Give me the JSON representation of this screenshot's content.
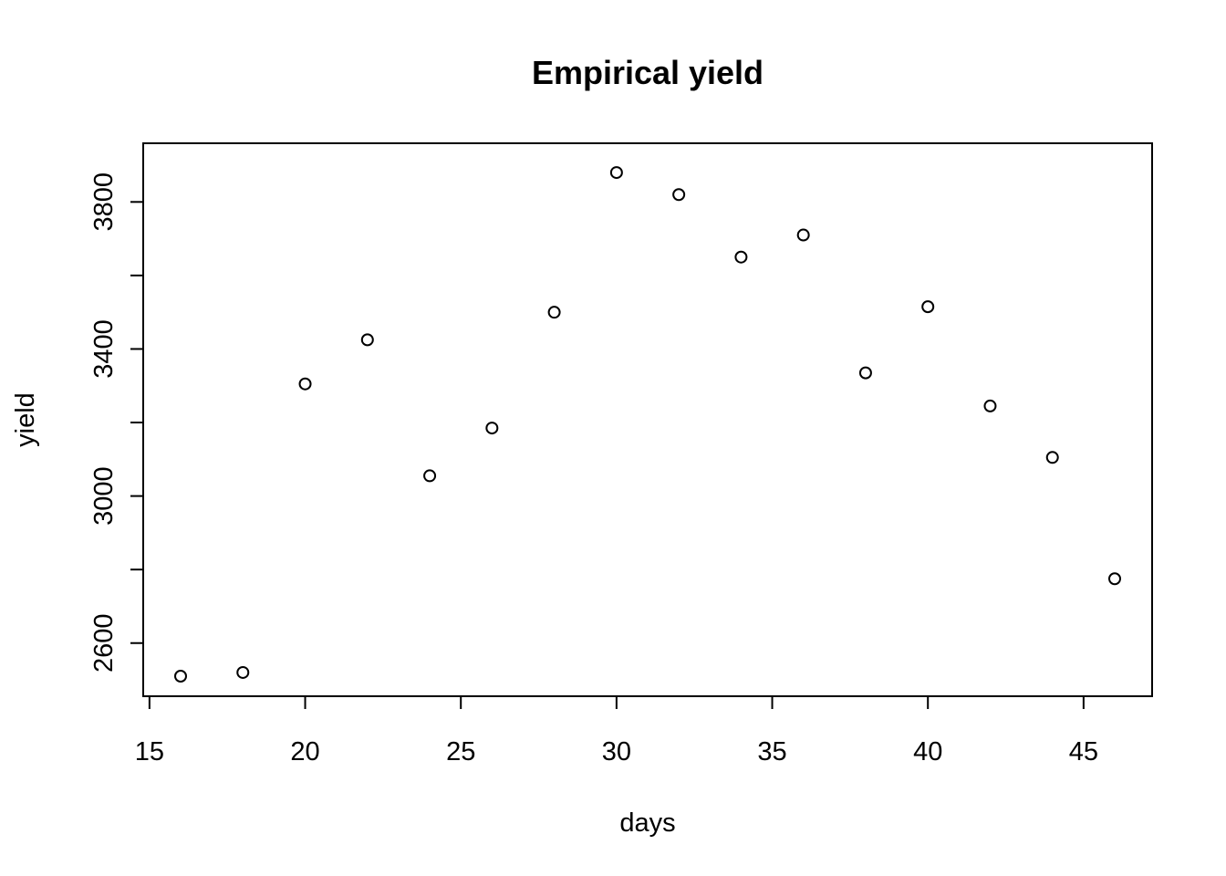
{
  "chart_data": {
    "type": "scatter",
    "title": "Empirical yield",
    "xlabel": "days",
    "ylabel": "yield",
    "xlim": [
      15,
      47
    ],
    "ylim": [
      2510,
      3905
    ],
    "x_ticks": [
      15,
      20,
      25,
      30,
      35,
      40,
      45
    ],
    "y_ticks": [
      2600,
      2800,
      3000,
      3200,
      3400,
      3600,
      3800
    ],
    "y_tick_labels": [
      "2600",
      "",
      "3000",
      "",
      "3400",
      "",
      "3800"
    ],
    "grid": false,
    "legend": "none",
    "marker": "open-circle",
    "color": "#000000",
    "x": [
      16,
      18,
      20,
      22,
      24,
      26,
      28,
      30,
      32,
      34,
      36,
      38,
      40,
      42,
      44,
      46
    ],
    "y": [
      2510,
      2520,
      3305,
      3425,
      3055,
      3185,
      3500,
      3880,
      3820,
      3650,
      3710,
      3335,
      3515,
      3245,
      3105,
      2775
    ]
  }
}
